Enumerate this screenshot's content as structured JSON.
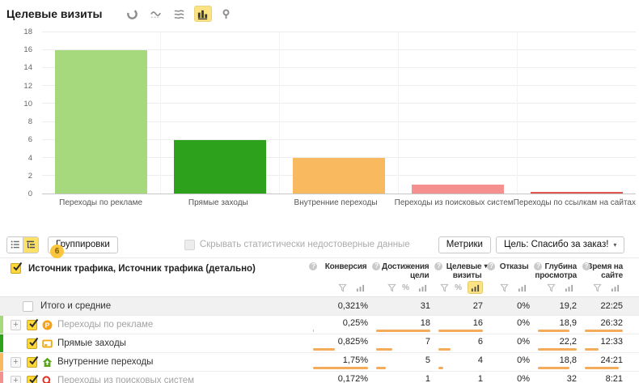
{
  "page": {
    "title": "Целевые визиты"
  },
  "chart_toolbar": {
    "icons": [
      "pie-chart",
      "line-chart",
      "stacked-area-chart",
      "bar-chart",
      "map-pin"
    ],
    "selected": "bar-chart"
  },
  "chart_data": {
    "type": "bar",
    "title": "Целевые визиты",
    "categories": [
      "Переходы по рекламе",
      "Прямые заходы",
      "Внутренние переходы",
      "Переходы из поисковых систем",
      "Переходы по ссылкам на сайтах"
    ],
    "values": [
      16,
      6,
      4,
      1,
      0.1
    ],
    "colors": [
      "#a6d97e",
      "#2da01c",
      "#f9b95f",
      "#f4918f",
      "#e4574d"
    ],
    "xlabel": "",
    "ylabel": "",
    "ylim": [
      0,
      18
    ],
    "yticks": [
      0,
      2,
      4,
      6,
      8,
      10,
      12,
      14,
      16,
      18
    ],
    "grid": true,
    "legend": false
  },
  "toolbar": {
    "view_list": "list-view",
    "view_tree": "tree-view",
    "groupings_button": "Группировки",
    "groupings_badge": "6",
    "hide_inaccurate_label": "Скрывать статистически недостоверные данные",
    "metrics_button": "Метрики",
    "goal_selector": "Цель: Спасибо за заказ!"
  },
  "table": {
    "grouping_header": "Источник трафика, Источник трафика (детально)",
    "columns": [
      {
        "label": "Конверсия"
      },
      {
        "label": "Достижения цели"
      },
      {
        "label": "Целевые визиты",
        "sorted": "desc"
      },
      {
        "label": "Отказы"
      },
      {
        "label": "Глубина просмотра"
      },
      {
        "label": "Время на сайте"
      }
    ],
    "totals_row": {
      "label": "Итого и средние",
      "values": [
        "0,321%",
        "31",
        "27",
        "0%",
        "19,2",
        "22:25"
      ]
    },
    "rows": [
      {
        "label": "Переходы по рекламе",
        "icon": "ad-source-icon",
        "stripe_color": "#a6d97e",
        "values": [
          "0,25%",
          "18",
          "16",
          "0%",
          "18,9",
          "26:32"
        ],
        "bar_widths": [
          14,
          100,
          100,
          0,
          85,
          100
        ]
      },
      {
        "label": "Прямые заходы",
        "icon": "direct-visits-icon",
        "stripe_color": "#2da01c",
        "values": [
          "0,825%",
          "7",
          "6",
          "0%",
          "22,2",
          "12:33"
        ],
        "bar_widths": [
          47,
          39,
          38,
          0,
          100,
          47
        ]
      },
      {
        "label": "Внутренние переходы",
        "icon": "internal-transitions-icon",
        "stripe_color": "#f9b95f",
        "values": [
          "1,75%",
          "5",
          "4",
          "0%",
          "18,8",
          "24:21"
        ],
        "bar_widths": [
          100,
          28,
          25,
          0,
          85,
          92
        ]
      },
      {
        "label": "Переходы из поисковых систем",
        "icon": "search-engine-icon",
        "stripe_color": "#f4918f",
        "values": [
          "0,172%",
          "1",
          "1",
          "0%",
          "32",
          "8:21"
        ],
        "bar_widths": [
          10,
          6,
          6,
          0,
          32,
          31
        ]
      }
    ]
  }
}
